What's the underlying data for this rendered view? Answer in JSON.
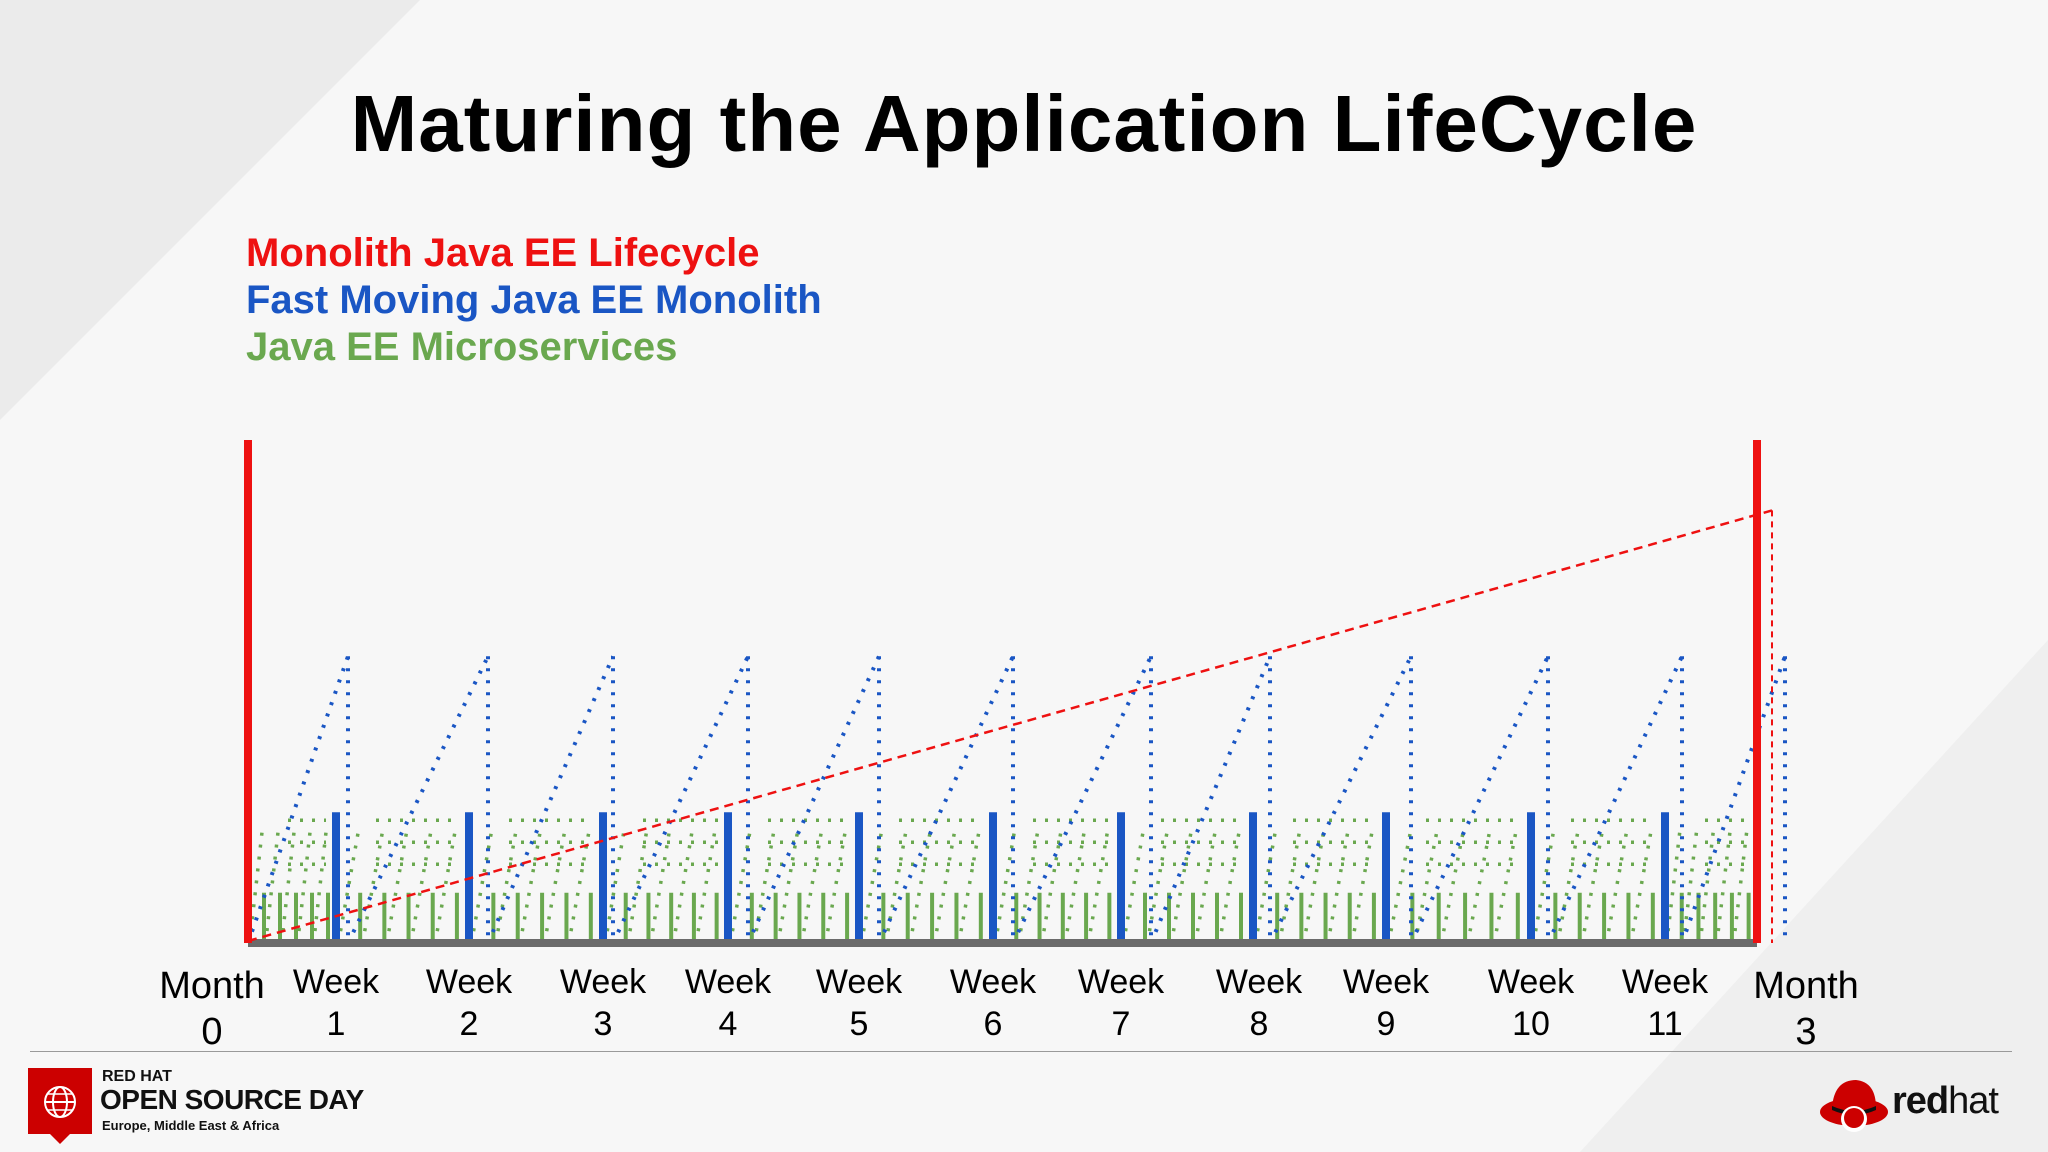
{
  "title": "Maturing the Application LifeCycle",
  "legend": [
    {
      "label": "Monolith Java EE Lifecycle",
      "color": "#ee1111"
    },
    {
      "label": "Fast Moving Java EE Monolith",
      "color": "#1a56c4"
    },
    {
      "label": "Java EE Microservices",
      "color": "#6aa84f"
    }
  ],
  "chart_data": {
    "type": "line",
    "title": "",
    "xlabel": "",
    "ylabel": "",
    "categories": [
      "Month 0",
      "Week 1",
      "Week 2",
      "Week 3",
      "Week 4",
      "Week 5",
      "Week 6",
      "Week 7",
      "Week 8",
      "Week 9",
      "Week 10",
      "Week 11",
      "Month 3"
    ],
    "tick_labels": [
      {
        "top": "Month",
        "bottom": "0"
      },
      {
        "top": "Week",
        "bottom": "1"
      },
      {
        "top": "Week",
        "bottom": "2"
      },
      {
        "top": "Week",
        "bottom": "3"
      },
      {
        "top": "Week",
        "bottom": "4"
      },
      {
        "top": "Week",
        "bottom": "5"
      },
      {
        "top": "Week",
        "bottom": "6"
      },
      {
        "top": "Week",
        "bottom": "7"
      },
      {
        "top": "Week",
        "bottom": "8"
      },
      {
        "top": "Week",
        "bottom": "9"
      },
      {
        "top": "Week",
        "bottom": "10"
      },
      {
        "top": "Week",
        "bottom": "11"
      },
      {
        "top": "Month",
        "bottom": "3"
      }
    ],
    "series": [
      {
        "name": "Monolith Java EE Lifecycle",
        "color": "#ee1111",
        "release_points": [
          "Month 0",
          "Month 3"
        ],
        "release_height": 1.0,
        "ramp": {
          "from": 0.0,
          "to": 0.86
        }
      },
      {
        "name": "Fast Moving Java EE Monolith",
        "color": "#1a56c4",
        "release_points": [
          "Week 1",
          "Week 2",
          "Week 3",
          "Week 4",
          "Week 5",
          "Week 6",
          "Week 7",
          "Week 8",
          "Week 9",
          "Week 10",
          "Week 11"
        ],
        "release_height": 0.26,
        "ramp_peak": 0.57
      },
      {
        "name": "Java EE Microservices",
        "color": "#6aa84f",
        "releases_per_week": 5,
        "release_height": 0.1,
        "ramp_peak": 0.26
      }
    ]
  },
  "footer": {
    "event_line1": "RED HAT",
    "event_line2": "OPEN SOURCE DAY",
    "event_line3": "Europe, Middle East & Africa",
    "brand_bold": "red",
    "brand_light": "hat"
  }
}
